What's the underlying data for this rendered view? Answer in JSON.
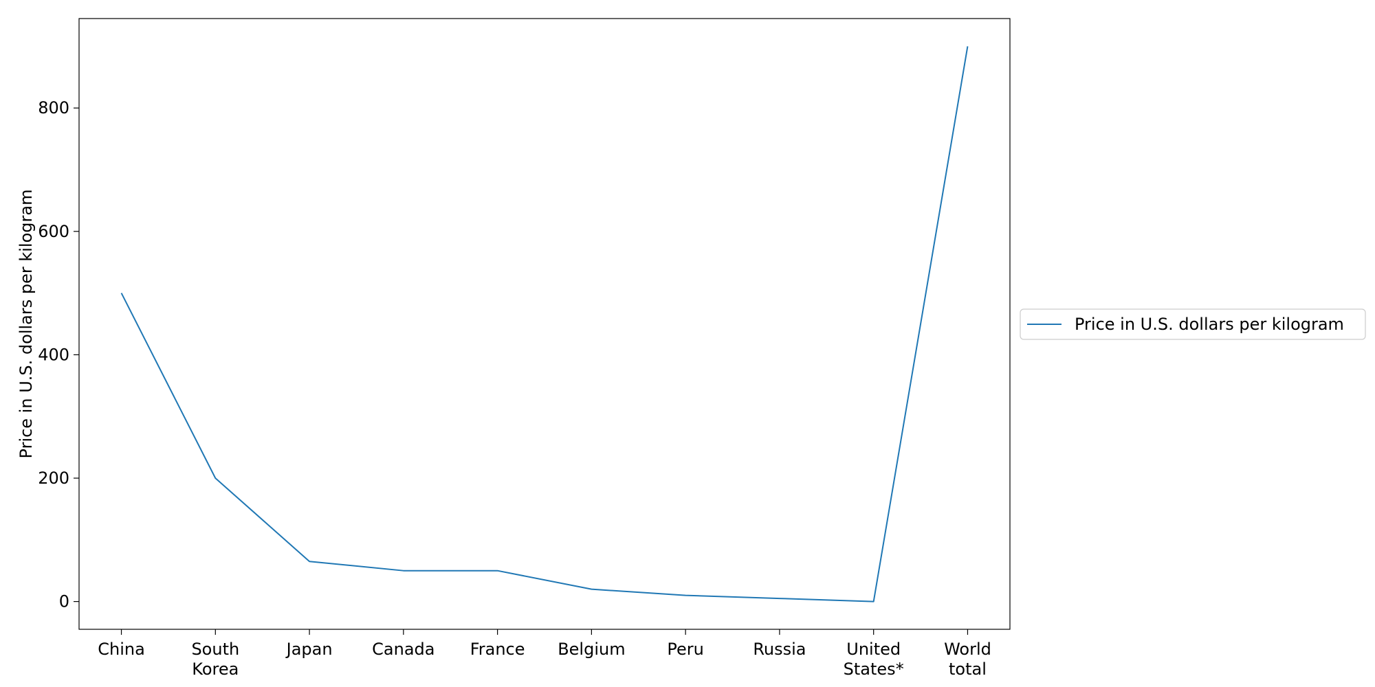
{
  "chart_data": {
    "type": "line",
    "title": "",
    "xlabel": "",
    "ylabel": "Price in U.S. dollars per kilogram",
    "categories": [
      [
        "China"
      ],
      [
        "South",
        "Korea"
      ],
      [
        "Japan"
      ],
      [
        "Canada"
      ],
      [
        "France"
      ],
      [
        "Belgium"
      ],
      [
        "Peru"
      ],
      [
        "Russia"
      ],
      [
        "United",
        "States*"
      ],
      [
        "World",
        "total"
      ]
    ],
    "series": [
      {
        "name": "Price in U.S. dollars per kilogram",
        "color": "#1f77b4",
        "values": [
          500,
          200,
          65,
          50,
          50,
          20,
          10,
          5,
          0,
          900
        ]
      }
    ],
    "ylim": [
      -45,
      945
    ],
    "yticks": [
      0,
      200,
      400,
      600,
      800
    ],
    "grid": false,
    "legend_position": "center-right, outside plot"
  }
}
